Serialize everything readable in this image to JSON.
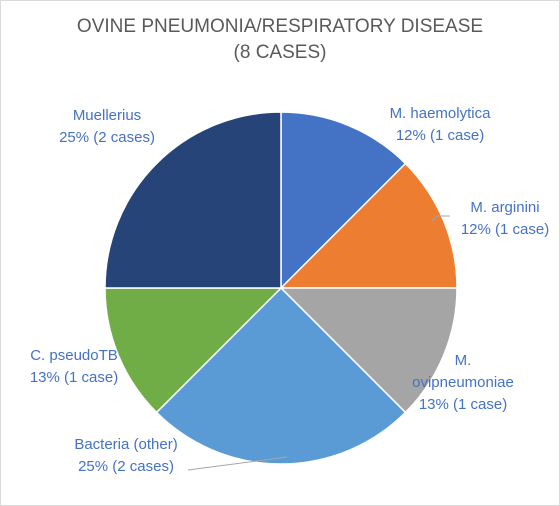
{
  "chart_data": {
    "type": "pie",
    "title": "OVINE PNEUMONIA/RESPIRATORY DISEASE",
    "subtitle": "(8 CASES)",
    "start_angle_deg": 0,
    "direction": "clockwise",
    "label_color": "#4472c4",
    "leader_line_color": "#a6a6a6",
    "slices": [
      {
        "label": "M. haemolytica",
        "percent_label": "12% (1 case)",
        "value": 1,
        "color": "#4472c4"
      },
      {
        "label": "M. arginini",
        "percent_label": "12% (1 case)",
        "value": 1,
        "color": "#ed7d31"
      },
      {
        "label": "M. ovipneumoniae",
        "percent_label": "13% (1 case)",
        "value": 1,
        "color": "#a5a5a5"
      },
      {
        "label": "Bacteria (other)",
        "percent_label": "25% (2 cases)",
        "value": 2,
        "color": "#5b9bd5"
      },
      {
        "label": "C. pseudoTB",
        "percent_label": "13% (1 case)",
        "value": 1,
        "color": "#70ad47"
      },
      {
        "label": "Muellerius",
        "percent_label": "25% (2 cases)",
        "value": 2,
        "color": "#264478"
      }
    ]
  }
}
